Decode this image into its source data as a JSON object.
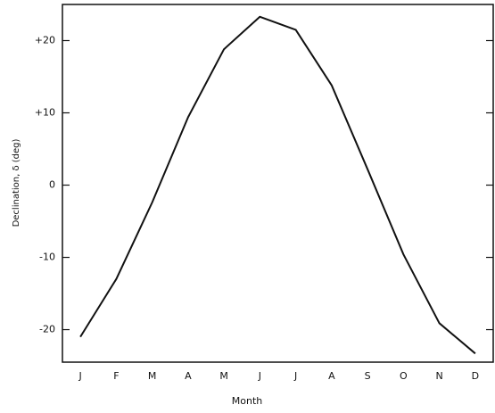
{
  "chart_data": {
    "type": "line",
    "x_label": "Month",
    "y_label": "Declination, δ (deg)",
    "categories": [
      "J",
      "F",
      "M",
      "A",
      "M",
      "J",
      "J",
      "A",
      "S",
      "O",
      "N",
      "D"
    ],
    "series": [
      {
        "color": "#111111",
        "values": [
          -21,
          -13,
          -2.4,
          9.4,
          18.8,
          23.3,
          21.5,
          13.8,
          2.2,
          -9.6,
          -19.1,
          -23.3
        ]
      }
    ],
    "ylim": [
      -24.5,
      25
    ],
    "yticks": [
      {
        "value": 20,
        "label": "+20"
      },
      {
        "value": 10,
        "label": "+10"
      },
      0,
      -10,
      -20
    ]
  }
}
